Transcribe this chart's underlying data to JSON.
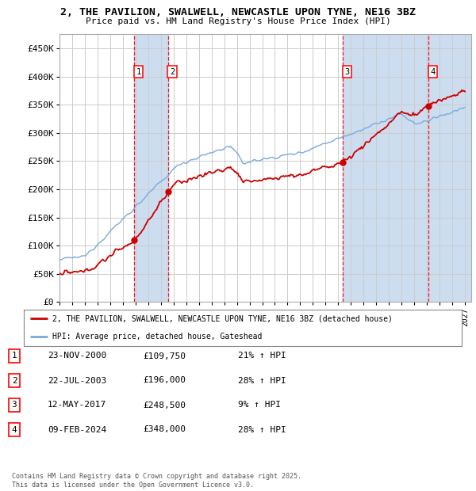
{
  "title_line1": "2, THE PAVILION, SWALWELL, NEWCASTLE UPON TYNE, NE16 3BZ",
  "title_line2": "Price paid vs. HM Land Registry's House Price Index (HPI)",
  "ylim": [
    0,
    475000
  ],
  "yticks": [
    0,
    50000,
    100000,
    150000,
    200000,
    250000,
    300000,
    350000,
    400000,
    450000
  ],
  "ytick_labels": [
    "£0",
    "£50K",
    "£100K",
    "£150K",
    "£200K",
    "£250K",
    "£300K",
    "£350K",
    "£400K",
    "£450K"
  ],
  "xlim_start": 1995.0,
  "xlim_end": 2027.5,
  "sale_dates": [
    2000.896,
    2003.554,
    2017.36,
    2024.11
  ],
  "sale_prices": [
    109750,
    196000,
    248500,
    348000
  ],
  "sale_labels": [
    "1",
    "2",
    "3",
    "4"
  ],
  "sale_date_strs": [
    "23-NOV-2000",
    "22-JUL-2003",
    "12-MAY-2017",
    "09-FEB-2024"
  ],
  "sale_price_strs": [
    "£109,750",
    "£196,000",
    "£248,500",
    "£348,000"
  ],
  "sale_pct_strs": [
    "21% ↑ HPI",
    "28% ↑ HPI",
    "9% ↑ HPI",
    "28% ↑ HPI"
  ],
  "legend_line1": "2, THE PAVILION, SWALWELL, NEWCASTLE UPON TYNE, NE16 3BZ (detached house)",
  "legend_line2": "HPI: Average price, detached house, Gateshead",
  "footer": "Contains HM Land Registry data © Crown copyright and database right 2025.\nThis data is licensed under the Open Government Licence v3.0.",
  "price_line_color": "#cc0000",
  "hpi_line_color": "#7aabdb",
  "grid_color": "#cccccc",
  "shade_color": "#ccddf0",
  "hatch_color": "#aabbcc"
}
